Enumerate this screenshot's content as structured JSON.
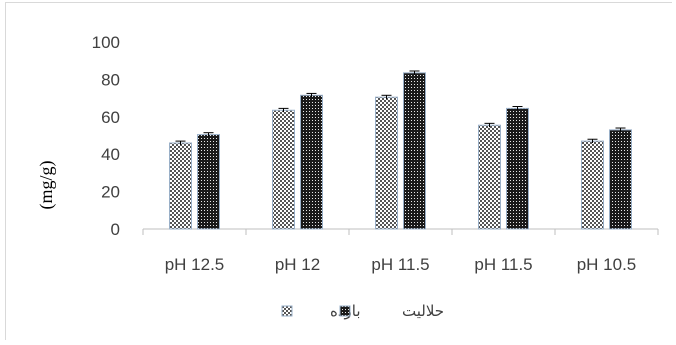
{
  "chart_data": {
    "type": "bar",
    "categories": [
      "pH 12.5",
      "pH 12",
      "pH 11.5",
      "pH 11.5",
      "pH 10.5"
    ],
    "series": [
      {
        "name": "بازده",
        "values": [
          46,
          63.5,
          70.5,
          55.5,
          47
        ],
        "errors": [
          1,
          1,
          1,
          1,
          1
        ],
        "pattern": "checker"
      },
      {
        "name": "حلالیت",
        "values": [
          50.5,
          71.5,
          83.5,
          64.5,
          53
        ],
        "errors": [
          1,
          1,
          1,
          1,
          1
        ],
        "pattern": "dense"
      }
    ],
    "ylabel": "(mg/g)",
    "ylim": [
      0,
      100
    ],
    "yticks": [
      0,
      20,
      40,
      60,
      80,
      100
    ],
    "grid": false,
    "legend": "bottom"
  }
}
